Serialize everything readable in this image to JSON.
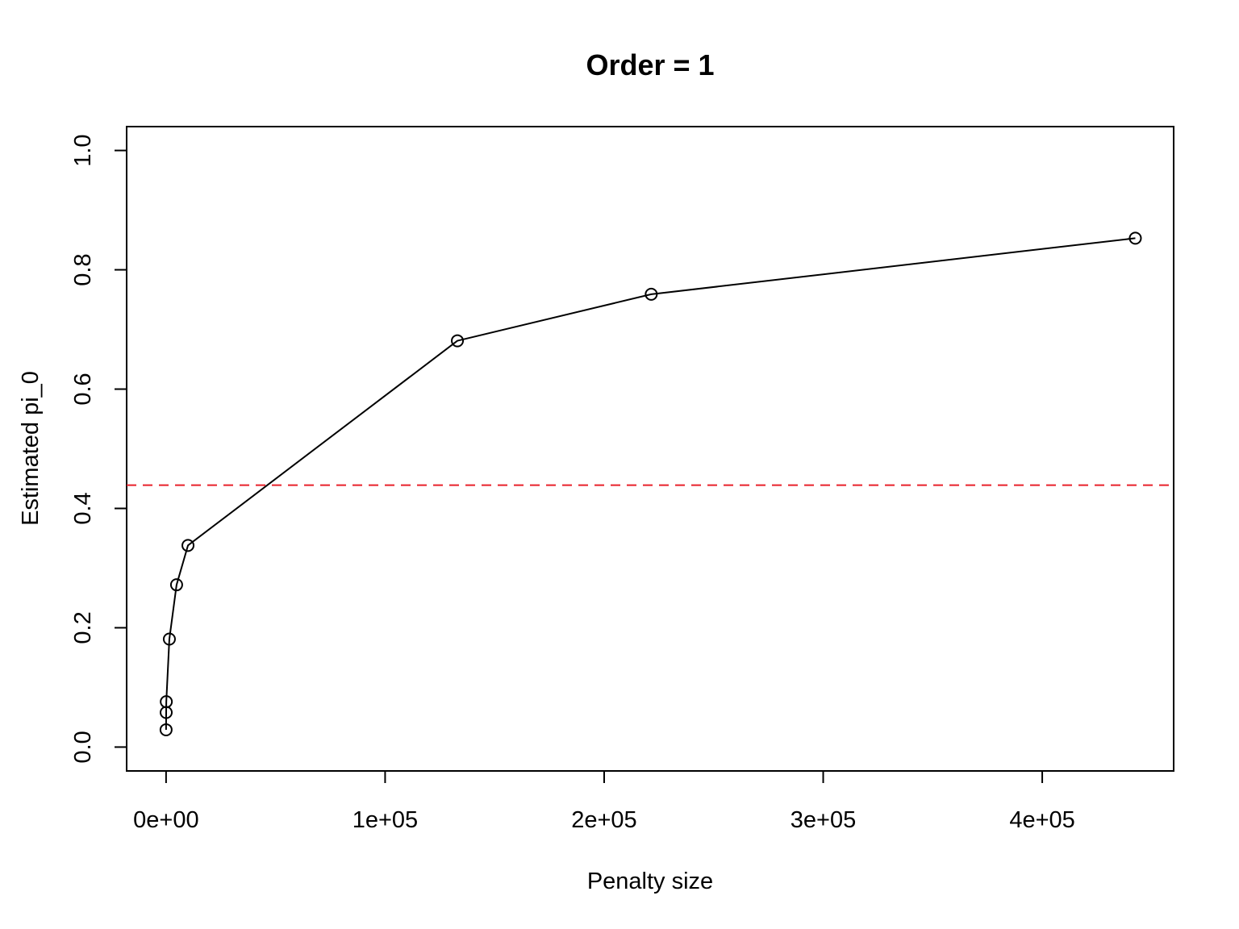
{
  "chart_data": {
    "type": "line",
    "title": "Order = 1",
    "xlabel": "Penalty size",
    "ylabel": "Estimated pi_0",
    "xlim": [
      -18000,
      460000
    ],
    "ylim": [
      -0.04,
      1.04
    ],
    "x_ticks": [
      0,
      100000,
      200000,
      300000,
      400000
    ],
    "x_tick_labels": [
      "0e+00",
      "1e+05",
      "2e+05",
      "3e+05",
      "4e+05"
    ],
    "y_ticks": [
      0.0,
      0.2,
      0.4,
      0.6,
      0.8,
      1.0
    ],
    "y_tick_labels": [
      "0.0",
      "0.2",
      "0.4",
      "0.6",
      "0.8",
      "1.0"
    ],
    "grid": false,
    "series": [
      {
        "color": "#000000",
        "marker": "open-circle",
        "line": "solid",
        "x": [
          0,
          50,
          100,
          1500,
          4800,
          10000,
          133000,
          221500,
          442500
        ],
        "y": [
          0.029,
          0.058,
          0.076,
          0.181,
          0.272,
          0.338,
          0.681,
          0.759,
          0.853
        ]
      }
    ],
    "reference_lines": [
      {
        "orientation": "horizontal",
        "y": 0.439,
        "color": "#e8202a",
        "style": "dashed"
      }
    ]
  }
}
